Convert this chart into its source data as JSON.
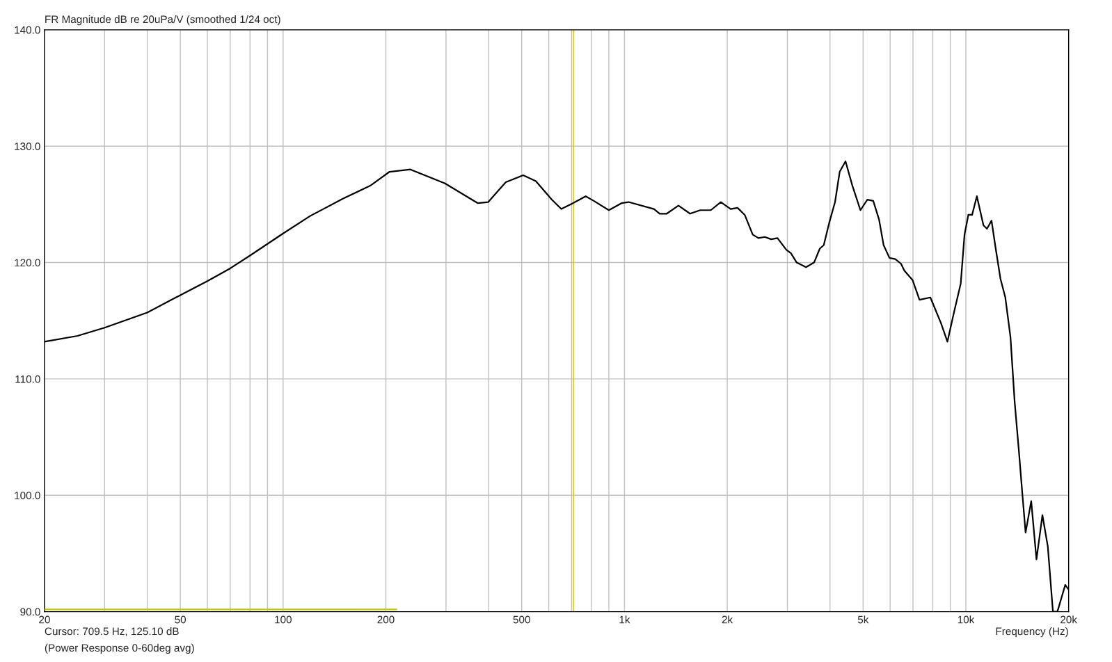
{
  "chart_data": {
    "type": "line",
    "title": "FR Magnitude dB re 20uPa/V (smoothed 1/24 oct)",
    "xlabel": "Frequency (Hz)",
    "log": "x",
    "grid": true,
    "legend": false,
    "marker": "none",
    "line_style": "solid",
    "xlim": [
      20,
      20000
    ],
    "ylim": [
      90,
      140
    ],
    "xticks": [
      20,
      {
        "value": 30,
        "label": null
      },
      {
        "value": 40,
        "label": null
      },
      50,
      {
        "value": 60,
        "label": null
      },
      {
        "value": 70,
        "label": null
      },
      {
        "value": 80,
        "label": null
      },
      {
        "value": 90,
        "label": null
      },
      100,
      200,
      {
        "value": 300,
        "label": null
      },
      {
        "value": 400,
        "label": null
      },
      500,
      {
        "value": 600,
        "label": null
      },
      {
        "value": 700,
        "label": null
      },
      {
        "value": 800,
        "label": null
      },
      {
        "value": 900,
        "label": null
      },
      {
        "value": 1000,
        "label": "1k"
      },
      {
        "value": 2000,
        "label": "2k"
      },
      {
        "value": 3000,
        "label": null
      },
      {
        "value": 4000,
        "label": null
      },
      {
        "value": 5000,
        "label": "5k"
      },
      {
        "value": 6000,
        "label": null
      },
      {
        "value": 7000,
        "label": null
      },
      {
        "value": 8000,
        "label": null
      },
      {
        "value": 9000,
        "label": null
      },
      {
        "value": 10000,
        "label": "10k"
      },
      {
        "value": 20000,
        "label": "20k"
      }
    ],
    "yticks": [
      {
        "value": 90,
        "label": "90.0"
      },
      {
        "value": 100,
        "label": "100.0"
      },
      {
        "value": 110,
        "label": "110.0"
      },
      {
        "value": 120,
        "label": "120.0"
      },
      {
        "value": 130,
        "label": "130.0"
      },
      {
        "value": 140,
        "label": "140.0"
      }
    ],
    "ref_lines": [
      {
        "axis": "x",
        "value": 709.5,
        "color": "#e0d000"
      }
    ],
    "annotations": [
      "Cursor: 709.5 Hz, 125.10 dB",
      "(Power Response 0-60deg avg)"
    ],
    "series": [
      {
        "color": "#000000",
        "x": [
          20,
          25,
          30,
          40,
          50,
          60,
          70,
          80,
          100,
          120,
          150,
          180,
          205,
          236,
          298,
          372,
          399,
          449,
          505,
          550,
          613,
          653,
          706,
          770,
          813,
          900,
          980,
          1028,
          1220,
          1268,
          1330,
          1439,
          1556,
          1667,
          1790,
          1915,
          2047,
          2144,
          2250,
          2375,
          2468,
          2577,
          2690,
          2806,
          2978,
          3073,
          3195,
          3402,
          3592,
          3734,
          3835,
          3977,
          4138,
          4270,
          4441,
          4652,
          4911,
          5146,
          5354,
          5568,
          5742,
          5973,
          6214,
          6457,
          6606,
          6980,
          7314,
          7870,
          8454,
          8830,
          9210,
          9660,
          9910,
          10170,
          10430,
          10770,
          11260,
          11530,
          11890,
          12230,
          12630,
          13050,
          13510,
          13900,
          14320,
          14650,
          14960,
          15540,
          16100,
          16760,
          17380,
          17990,
          18540,
          19550,
          20000
        ],
        "values": [
          113.2,
          113.7,
          114.4,
          115.7,
          117.2,
          118.4,
          119.5,
          120.6,
          122.5,
          124.0,
          125.5,
          126.6,
          127.8,
          128.0,
          126.8,
          125.1,
          125.2,
          126.9,
          127.5,
          127.0,
          125.4,
          124.6,
          125.1,
          125.7,
          125.3,
          124.5,
          125.1,
          125.2,
          124.6,
          124.2,
          124.2,
          124.9,
          124.2,
          124.5,
          124.5,
          125.2,
          124.6,
          124.7,
          124.1,
          122.4,
          122.1,
          122.2,
          122.0,
          122.1,
          121.1,
          120.8,
          120.0,
          119.6,
          120.0,
          121.2,
          121.5,
          123.4,
          125.2,
          127.8,
          128.7,
          126.6,
          124.5,
          125.4,
          125.3,
          123.7,
          121.5,
          120.4,
          120.3,
          119.9,
          119.3,
          118.5,
          116.8,
          117.0,
          114.8,
          113.2,
          115.6,
          118.2,
          122.4,
          124.1,
          124.1,
          125.7,
          123.2,
          122.9,
          123.6,
          121.2,
          118.6,
          117.0,
          113.6,
          108.0,
          103.6,
          100.0,
          96.8,
          99.5,
          94.5,
          98.3,
          95.6,
          90.0,
          90.0,
          92.3,
          91.9
        ]
      },
      {
        "color": "#c8c800",
        "x": [
          20,
          215
        ],
        "values": [
          90.2,
          90.2
        ]
      }
    ]
  }
}
